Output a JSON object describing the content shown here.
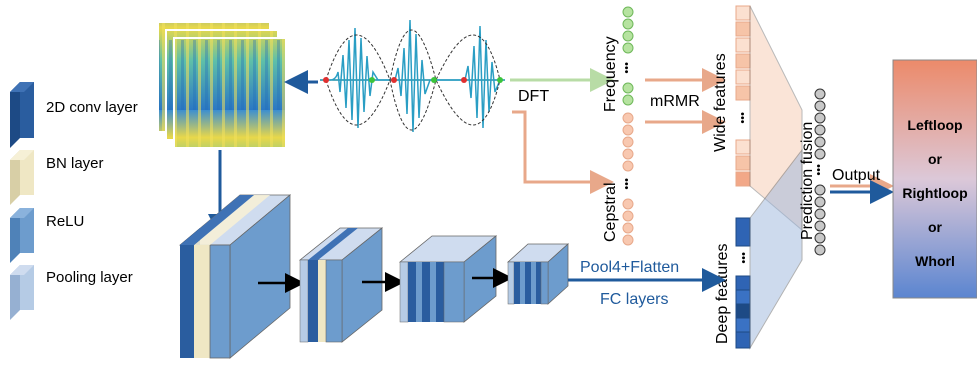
{
  "legend": {
    "items": [
      {
        "label": "2D conv layer",
        "color": "#2a5d9f"
      },
      {
        "label": "BN layer",
        "color": "#efe7c4"
      },
      {
        "label": "ReLU",
        "color": "#6d9ccd"
      },
      {
        "label": "Pooling layer",
        "color": "#b5cbe5"
      }
    ]
  },
  "labels": {
    "dft": "DFT",
    "frequency": "Frequency",
    "cepstral": "Cepstral",
    "mrmr": "mRMR",
    "wide_features": "Wide features",
    "deep_features": "Deep features",
    "prediction_fusion": "Prediction fusion",
    "output": "Output",
    "pool_flatten": "Pool4+Flatten",
    "fc_layers": "FC layers",
    "ellipsis": "•••"
  },
  "output_classes": [
    "Leftloop",
    "or",
    "Rightloop",
    "or",
    "Whorl"
  ],
  "colors": {
    "conv": "#2a5d9f",
    "bn": "#efe7c4",
    "relu": "#6d9ccd",
    "pool": "#b5cbe5",
    "arrow_blue": "#1f5a9c",
    "arrow_green": "#b8dca6",
    "arrow_orange": "#e8a88a",
    "freq_circle": "#b6e3a0",
    "cep_circle": "#f8c8b0",
    "wide_block": "#f6c4a8",
    "deep_block": "#2f64b4",
    "fusion_circle": "#c8c8c8"
  }
}
